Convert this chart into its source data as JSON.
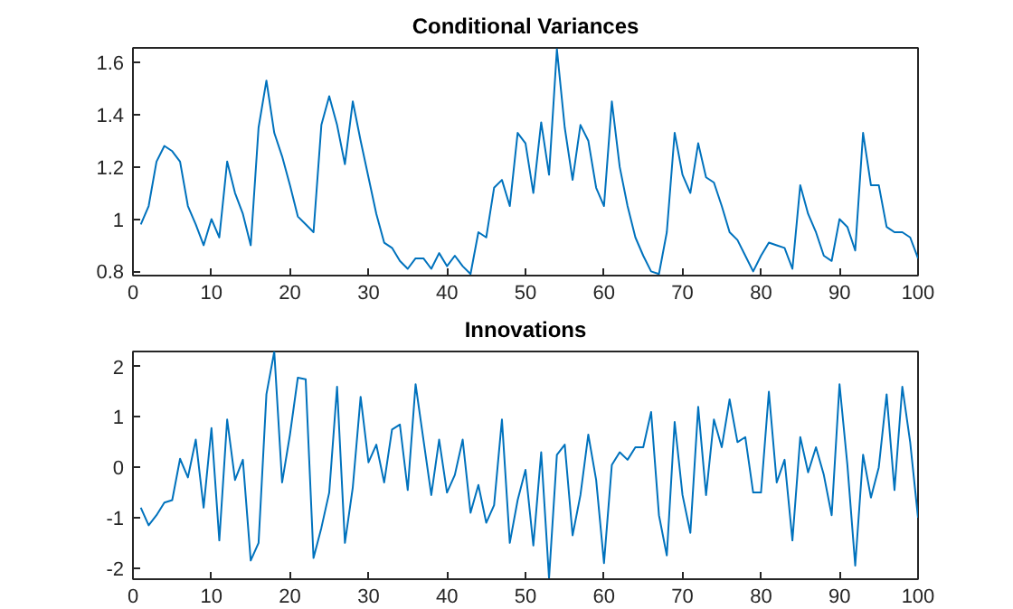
{
  "chart_data": [
    {
      "type": "line",
      "title": "Conditional Variances",
      "x": [
        1,
        2,
        3,
        4,
        5,
        6,
        7,
        8,
        9,
        10,
        11,
        12,
        13,
        14,
        15,
        16,
        17,
        18,
        19,
        20,
        21,
        22,
        23,
        24,
        25,
        26,
        27,
        28,
        29,
        30,
        31,
        32,
        33,
        34,
        35,
        36,
        37,
        38,
        39,
        40,
        41,
        42,
        43,
        44,
        45,
        46,
        47,
        48,
        49,
        50,
        51,
        52,
        53,
        54,
        55,
        56,
        57,
        58,
        59,
        60,
        61,
        62,
        63,
        64,
        65,
        66,
        67,
        68,
        69,
        70,
        71,
        72,
        73,
        74,
        75,
        76,
        77,
        78,
        79,
        80,
        81,
        82,
        83,
        84,
        85,
        86,
        87,
        88,
        89,
        90,
        91,
        92,
        93,
        94,
        95,
        96,
        97,
        98,
        99,
        100
      ],
      "series": [
        {
          "color": "#0072bd",
          "values": [
            0.98,
            1.05,
            1.22,
            1.28,
            1.26,
            1.22,
            1.05,
            0.98,
            0.9,
            1.0,
            0.93,
            1.22,
            1.1,
            1.02,
            0.9,
            1.35,
            1.53,
            1.33,
            1.24,
            1.13,
            1.01,
            0.98,
            0.95,
            1.36,
            1.47,
            1.36,
            1.21,
            1.45,
            1.3,
            1.16,
            1.02,
            0.91,
            0.89,
            0.84,
            0.81,
            0.85,
            0.85,
            0.81,
            0.87,
            0.82,
            0.86,
            0.82,
            0.79,
            0.95,
            0.93,
            1.12,
            1.15,
            1.05,
            1.33,
            1.29,
            1.1,
            1.37,
            1.17,
            1.65,
            1.35,
            1.15,
            1.36,
            1.3,
            1.12,
            1.05,
            1.45,
            1.2,
            1.05,
            0.93,
            0.86,
            0.8,
            0.79,
            0.95,
            1.33,
            1.17,
            1.1,
            1.29,
            1.16,
            1.14,
            1.05,
            0.95,
            0.92,
            0.86,
            0.8,
            0.86,
            0.91,
            0.9,
            0.89,
            0.81,
            1.13,
            1.02,
            0.95,
            0.86,
            0.84,
            1.0,
            0.97,
            0.88,
            1.33,
            1.13,
            1.13,
            0.97,
            0.95,
            0.95,
            0.93,
            0.85
          ]
        }
      ],
      "xlim": [
        0,
        100
      ],
      "xticks": [
        0,
        10,
        20,
        30,
        40,
        50,
        60,
        70,
        80,
        90,
        100
      ],
      "ylim": [
        0.784,
        1.655
      ],
      "yticks": [
        0.8,
        1,
        1.2,
        1.4,
        1.6
      ],
      "grid": false,
      "marker": "none",
      "line_style": "solid"
    },
    {
      "type": "line",
      "title": "Innovations",
      "x": [
        1,
        2,
        3,
        4,
        5,
        6,
        7,
        8,
        9,
        10,
        11,
        12,
        13,
        14,
        15,
        16,
        17,
        18,
        19,
        20,
        21,
        22,
        23,
        24,
        25,
        26,
        27,
        28,
        29,
        30,
        31,
        32,
        33,
        34,
        35,
        36,
        37,
        38,
        39,
        40,
        41,
        42,
        43,
        44,
        45,
        46,
        47,
        48,
        49,
        50,
        51,
        52,
        53,
        54,
        55,
        56,
        57,
        58,
        59,
        60,
        61,
        62,
        63,
        64,
        65,
        66,
        67,
        68,
        69,
        70,
        71,
        72,
        73,
        74,
        75,
        76,
        77,
        78,
        79,
        80,
        81,
        82,
        83,
        84,
        85,
        86,
        87,
        88,
        89,
        90,
        91,
        92,
        93,
        94,
        95,
        96,
        97,
        98,
        99,
        100
      ],
      "series": [
        {
          "color": "#0072bd",
          "values": [
            -0.8,
            -1.15,
            -0.95,
            -0.7,
            -0.65,
            0.17,
            -0.2,
            0.55,
            -0.8,
            0.78,
            -1.45,
            0.95,
            -0.25,
            0.15,
            -1.85,
            -1.5,
            1.45,
            2.3,
            -0.3,
            0.65,
            1.78,
            1.75,
            -1.8,
            -1.2,
            -0.5,
            1.6,
            -1.5,
            -0.4,
            1.4,
            0.1,
            0.45,
            -0.3,
            0.75,
            0.85,
            -0.45,
            1.65,
            0.55,
            -0.55,
            0.55,
            -0.5,
            -0.15,
            0.55,
            -0.9,
            -0.35,
            -1.1,
            -0.75,
            0.95,
            -1.5,
            -0.65,
            -0.05,
            -1.55,
            0.3,
            -2.2,
            0.25,
            0.45,
            -1.35,
            -0.55,
            0.65,
            -0.25,
            -1.9,
            0.05,
            0.3,
            0.15,
            0.4,
            0.4,
            1.1,
            -0.95,
            -1.75,
            0.9,
            -0.55,
            -1.3,
            1.2,
            -0.55,
            0.95,
            0.4,
            1.35,
            0.5,
            0.6,
            -0.5,
            -0.5,
            1.5,
            -0.3,
            0.15,
            -1.45,
            0.6,
            -0.1,
            0.4,
            -0.15,
            -0.95,
            1.65,
            0.05,
            -1.95,
            0.25,
            -0.6,
            0.0,
            1.45,
            -0.45,
            1.6,
            0.5,
            -1.0
          ]
        }
      ],
      "xlim": [
        0,
        100
      ],
      "xticks": [
        0,
        10,
        20,
        30,
        40,
        50,
        60,
        70,
        80,
        90,
        100
      ],
      "ylim": [
        -2.22,
        2.3
      ],
      "yticks": [
        -2,
        -1,
        0,
        1,
        2
      ],
      "grid": false,
      "marker": "none",
      "line_style": "solid"
    }
  ]
}
